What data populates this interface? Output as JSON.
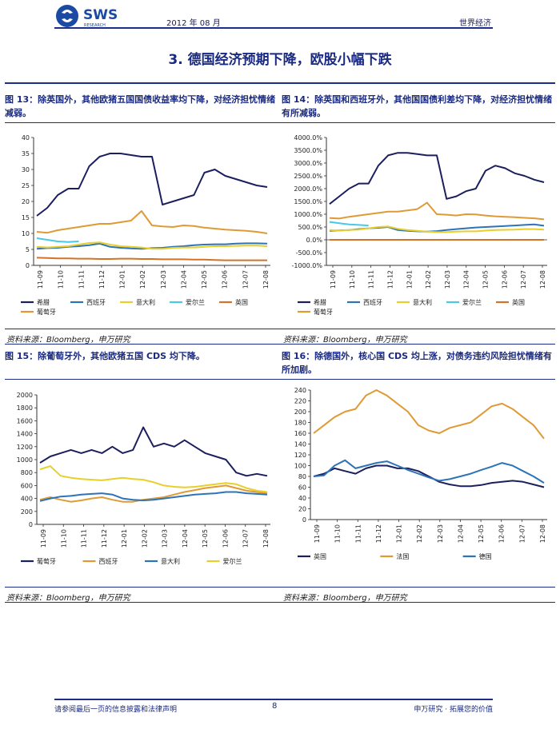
{
  "header": {
    "logo_text": "SWS",
    "logo_sub": "RESEARCH",
    "date": "2012 年 08 月",
    "category": "世界经济"
  },
  "section_title": "3.  德国经济预期下降，欧股小幅下跌",
  "figures": [
    {
      "caption": "图 13：除英国外，其他欧猪五国国债收益率均下降，对经济担忧情绪减弱。",
      "source": "资料来源：Bloomberg，申万研究"
    },
    {
      "caption": "图 14：除英国和西班牙外，其他国国债利差均下降，对经济担忧情绪有所减弱。",
      "source": "资料来源：Bloomberg，申万研究"
    },
    {
      "caption": "图 15：除葡萄牙外，其他欧猪五国 CDS 均下降。",
      "source": "资料来源：Bloomberg，申万研究"
    },
    {
      "caption": "图 16：除德国外，核心国 CDS 均上涨，对债务违约风险担忧情绪有所加剧。",
      "source": "资料来源：Bloomberg，申万研究"
    }
  ],
  "chart_data": [
    {
      "type": "line",
      "x_ticks": [
        "11-09",
        "11-10",
        "11-11",
        "11-12",
        "12-01",
        "12-02",
        "12-03",
        "12-04",
        "12-05",
        "12-06",
        "12-07",
        "12-08"
      ],
      "ylim": [
        0,
        40
      ],
      "y_ticks": [
        "0",
        "5",
        "10",
        "15",
        "20",
        "25",
        "30",
        "35",
        "40"
      ],
      "series": [
        {
          "name": "希腊",
          "color": "#1b1f5e",
          "values": [
            15.5,
            18,
            22,
            24,
            24,
            31,
            34,
            35,
            35,
            34.5,
            34,
            34,
            19,
            20,
            21,
            22,
            29,
            30,
            28,
            27,
            26,
            25,
            24.5
          ]
        },
        {
          "name": "西班牙",
          "color": "#2d73b8",
          "values": [
            5.2,
            5.4,
            5.5,
            5.8,
            6,
            6.3,
            6.8,
            5.8,
            5.5,
            5.3,
            5.2,
            5.4,
            5.5,
            5.8,
            6,
            6.3,
            6.5,
            6.6,
            6.6,
            6.8,
            6.9,
            6.9,
            6.8
          ]
        },
        {
          "name": "意大利",
          "color": "#e8cf2a",
          "values": [
            5.8,
            5.6,
            5.8,
            6,
            6.5,
            7,
            7.2,
            6.5,
            6,
            5.8,
            5.6,
            5.2,
            5.2,
            5.5,
            5.6,
            5.6,
            5.8,
            6,
            6,
            6.1,
            6.2,
            6.2,
            6
          ]
        },
        {
          "name": "爱尔兰",
          "color": "#49c8e8",
          "values": [
            8.5,
            8,
            7.5,
            7.3,
            7.5,
            null,
            null,
            null,
            null,
            null,
            null,
            null,
            null,
            null,
            null,
            null,
            null,
            null,
            null,
            null,
            null,
            null,
            null
          ]
        },
        {
          "name": "英国",
          "color": "#d3732a",
          "values": [
            2.4,
            2.3,
            2.2,
            2.2,
            2.1,
            2.1,
            2.0,
            2.0,
            2.1,
            2.1,
            2.0,
            2.0,
            1.9,
            1.9,
            1.9,
            1.8,
            1.8,
            1.7,
            1.6,
            1.6,
            1.6,
            1.6,
            1.6
          ]
        },
        {
          "name": "葡萄牙",
          "color": "#e09a35",
          "values": [
            10.5,
            10.2,
            11,
            11.5,
            12,
            12.5,
            13,
            13,
            13.5,
            14,
            17,
            12.5,
            12.2,
            12,
            12.5,
            12.3,
            11.8,
            11.5,
            11.2,
            11,
            10.8,
            10.5,
            10
          ]
        }
      ]
    },
    {
      "type": "line",
      "x_ticks": [
        "11-09",
        "11-10",
        "11-11",
        "11-12",
        "12-01",
        "12-02",
        "12-03",
        "12-04",
        "12-05",
        "12-06",
        "12-07",
        "12-08"
      ],
      "ylim": [
        -1000,
        4000
      ],
      "y_ticks": [
        "-1000.0%",
        "-500.0%",
        "0.0%",
        "500.0%",
        "1000.0%",
        "1500.0%",
        "2000.0%",
        "2500.0%",
        "3000.0%",
        "3500.0%",
        "4000.0%"
      ],
      "series": [
        {
          "name": "希腊",
          "color": "#1b1f5e",
          "values": [
            1400,
            1700,
            2000,
            2200,
            2200,
            2900,
            3300,
            3400,
            3400,
            3350,
            3300,
            3300,
            1600,
            1700,
            1900,
            2000,
            2700,
            2900,
            2800,
            2600,
            2500,
            2350,
            2250
          ]
        },
        {
          "name": "西班牙",
          "color": "#2d73b8",
          "values": [
            350,
            370,
            380,
            420,
            450,
            470,
            500,
            380,
            350,
            330,
            320,
            340,
            380,
            420,
            450,
            480,
            500,
            520,
            540,
            560,
            580,
            600,
            550
          ]
        },
        {
          "name": "意大利",
          "color": "#e8cf2a",
          "values": [
            380,
            360,
            380,
            400,
            450,
            500,
            520,
            430,
            380,
            350,
            320,
            300,
            300,
            320,
            330,
            330,
            360,
            380,
            390,
            400,
            420,
            420,
            400
          ]
        },
        {
          "name": "爱尔兰",
          "color": "#49c8e8",
          "values": [
            700,
            650,
            600,
            580,
            560,
            null,
            null,
            null,
            null,
            null,
            null,
            null,
            null,
            null,
            null,
            null,
            null,
            null,
            null,
            null,
            null,
            null,
            null
          ]
        },
        {
          "name": "英国",
          "color": "#d3732a",
          "values": [
            0,
            0,
            0,
            0,
            0,
            0,
            0,
            0,
            0,
            0,
            0,
            0,
            0,
            0,
            0,
            0,
            0,
            0,
            0,
            0,
            0,
            0,
            0
          ]
        },
        {
          "name": "葡萄牙",
          "color": "#e09a35",
          "values": [
            850,
            830,
            900,
            950,
            1000,
            1050,
            1100,
            1100,
            1150,
            1200,
            1450,
            1000,
            980,
            950,
            1000,
            990,
            950,
            920,
            900,
            880,
            860,
            840,
            800
          ]
        }
      ]
    },
    {
      "type": "line",
      "x_ticks": [
        "11-09",
        "11-10",
        "11-11",
        "11-12",
        "12-01",
        "12-02",
        "12-03",
        "12-04",
        "12-05",
        "12-06",
        "12-07",
        "12-08"
      ],
      "ylim": [
        0,
        2000
      ],
      "y_ticks": [
        "0",
        "200",
        "400",
        "600",
        "800",
        "1000",
        "1200",
        "1400",
        "1600",
        "1800",
        "2000"
      ],
      "series": [
        {
          "name": "葡萄牙",
          "color": "#1b1f5e",
          "values": [
            950,
            1050,
            1100,
            1150,
            1100,
            1150,
            1100,
            1200,
            1100,
            1150,
            1500,
            1200,
            1250,
            1200,
            1300,
            1200,
            1100,
            1050,
            1000,
            800,
            750,
            780,
            750
          ]
        },
        {
          "name": "西班牙",
          "color": "#e09a35",
          "values": [
            380,
            420,
            380,
            350,
            370,
            400,
            420,
            380,
            350,
            350,
            380,
            400,
            420,
            460,
            500,
            530,
            560,
            580,
            600,
            560,
            520,
            500,
            480
          ]
        },
        {
          "name": "意大利",
          "color": "#2d73b8",
          "values": [
            360,
            400,
            430,
            440,
            460,
            470,
            480,
            460,
            400,
            380,
            370,
            380,
            400,
            420,
            440,
            460,
            470,
            480,
            500,
            500,
            480,
            470,
            460
          ]
        },
        {
          "name": "爱尔兰",
          "color": "#e8cf2a",
          "values": [
            850,
            900,
            750,
            720,
            700,
            690,
            680,
            700,
            720,
            700,
            690,
            650,
            600,
            580,
            570,
            580,
            600,
            620,
            640,
            620,
            560,
            520,
            500
          ]
        }
      ]
    },
    {
      "type": "line",
      "x_ticks": [
        "11-09",
        "11-10",
        "11-11",
        "11-12",
        "12-01",
        "12-02",
        "12-03",
        "12-04",
        "12-05",
        "12-06",
        "12-07",
        "12-08"
      ],
      "ylim": [
        0,
        240
      ],
      "y_ticks": [
        "0",
        "20",
        "40",
        "60",
        "80",
        "100",
        "120",
        "140",
        "160",
        "180",
        "200",
        "220",
        "240"
      ],
      "series": [
        {
          "name": "英国",
          "color": "#1b1f5e",
          "values": [
            80,
            85,
            95,
            90,
            85,
            95,
            100,
            100,
            95,
            95,
            90,
            80,
            70,
            65,
            62,
            62,
            64,
            68,
            70,
            72,
            70,
            65,
            60
          ]
        },
        {
          "name": "法国",
          "color": "#e09a35",
          "values": [
            160,
            175,
            190,
            200,
            205,
            230,
            240,
            230,
            215,
            200,
            175,
            165,
            160,
            170,
            175,
            180,
            195,
            210,
            215,
            205,
            190,
            175,
            150
          ]
        },
        {
          "name": "德国",
          "color": "#2d73b8",
          "values": [
            80,
            82,
            100,
            110,
            95,
            100,
            105,
            108,
            100,
            92,
            85,
            78,
            72,
            75,
            80,
            85,
            92,
            98,
            105,
            100,
            90,
            80,
            68
          ]
        }
      ]
    }
  ]
}
